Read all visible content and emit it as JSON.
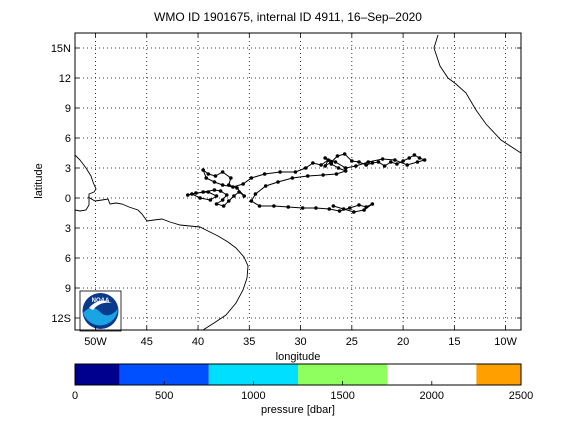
{
  "title": "WMO ID 1901675, internal ID 4911, 16–Sep–2020",
  "map": {
    "xlabel": "longitude",
    "ylabel": "latitude",
    "lon_range": [
      -52,
      -8.5
    ],
    "lat_range": [
      -13.2,
      16.5
    ],
    "x_ticks": [
      {
        "value": -50,
        "label": "50W"
      },
      {
        "value": -45,
        "label": "45"
      },
      {
        "value": -40,
        "label": "40"
      },
      {
        "value": -35,
        "label": "35"
      },
      {
        "value": -30,
        "label": "30"
      },
      {
        "value": -25,
        "label": "25"
      },
      {
        "value": -20,
        "label": "20"
      },
      {
        "value": -15,
        "label": "15"
      },
      {
        "value": -10,
        "label": "10W"
      }
    ],
    "y_ticks": [
      {
        "value": 15,
        "label": "15N"
      },
      {
        "value": 12,
        "label": "12"
      },
      {
        "value": 9,
        "label": "9"
      },
      {
        "value": 6,
        "label": "6"
      },
      {
        "value": 3,
        "label": "3"
      },
      {
        "value": 0,
        "label": "0"
      },
      {
        "value": -3,
        "label": "3"
      },
      {
        "value": -6,
        "label": "6"
      },
      {
        "value": -9,
        "label": "9"
      },
      {
        "value": -12,
        "label": "12S"
      }
    ],
    "grid": "dotted",
    "float_track": [
      [
        -41.0,
        0.3
      ],
      [
        -40.2,
        0.5
      ],
      [
        -39.0,
        0.6
      ],
      [
        -38.2,
        0.2
      ],
      [
        -38.8,
        -0.2
      ],
      [
        -39.8,
        0.0
      ],
      [
        -40.6,
        0.4
      ],
      [
        -39.5,
        0.6
      ],
      [
        -38.4,
        0.8
      ],
      [
        -37.8,
        0.7
      ],
      [
        -37.2,
        0.3
      ],
      [
        -37.6,
        -0.2
      ],
      [
        -38.2,
        -0.6
      ],
      [
        -37.5,
        -0.8
      ],
      [
        -37.0,
        -0.3
      ],
      [
        -36.5,
        0.2
      ],
      [
        -36.0,
        0.6
      ],
      [
        -35.5,
        0.2
      ],
      [
        -36.2,
        1.0
      ],
      [
        -37.0,
        1.3
      ],
      [
        -36.8,
        2.0
      ],
      [
        -37.6,
        2.6
      ],
      [
        -38.3,
        2.2
      ],
      [
        -39.0,
        2.4
      ],
      [
        -39.5,
        2.8
      ],
      [
        -39.2,
        2.0
      ],
      [
        -38.4,
        1.6
      ],
      [
        -37.6,
        1.3
      ],
      [
        -36.6,
        1.1
      ],
      [
        -35.6,
        1.4
      ],
      [
        -34.8,
        2.0
      ],
      [
        -33.5,
        2.4
      ],
      [
        -32.0,
        2.6
      ],
      [
        -30.5,
        2.6
      ],
      [
        -29.5,
        3.0
      ],
      [
        -28.8,
        3.5
      ],
      [
        -28.0,
        3.3
      ],
      [
        -27.3,
        3.8
      ],
      [
        -27.6,
        3.2
      ],
      [
        -27.0,
        3.6
      ],
      [
        -26.4,
        4.2
      ],
      [
        -25.7,
        4.4
      ],
      [
        -25.0,
        3.7
      ],
      [
        -24.3,
        3.6
      ],
      [
        -23.6,
        3.3
      ],
      [
        -23.0,
        3.5
      ],
      [
        -22.4,
        3.6
      ],
      [
        -21.8,
        3.2
      ],
      [
        -21.2,
        3.6
      ],
      [
        -20.6,
        3.4
      ],
      [
        -20.0,
        3.7
      ],
      [
        -19.4,
        4.0
      ],
      [
        -18.9,
        4.3
      ],
      [
        -18.4,
        4.0
      ],
      [
        -17.9,
        3.8
      ],
      [
        -18.6,
        3.6
      ],
      [
        -19.6,
        3.3
      ],
      [
        -20.8,
        3.8
      ],
      [
        -22.0,
        3.9
      ],
      [
        -23.4,
        3.6
      ],
      [
        -24.6,
        3.2
      ],
      [
        -25.6,
        3.0
      ],
      [
        -26.6,
        3.6
      ],
      [
        -27.6,
        4.0
      ],
      [
        -27.0,
        3.4
      ],
      [
        -26.3,
        3.0
      ],
      [
        -25.6,
        2.7
      ],
      [
        -26.5,
        2.4
      ],
      [
        -27.8,
        2.3
      ],
      [
        -29.3,
        2.2
      ],
      [
        -30.8,
        2.0
      ],
      [
        -32.2,
        1.6
      ],
      [
        -33.4,
        1.2
      ],
      [
        -34.4,
        0.4
      ],
      [
        -34.8,
        -0.3
      ],
      [
        -34.0,
        -0.8
      ],
      [
        -32.6,
        -0.8
      ],
      [
        -31.2,
        -0.9
      ],
      [
        -29.8,
        -1.0
      ],
      [
        -28.5,
        -1.0
      ],
      [
        -27.2,
        -1.1
      ],
      [
        -26.2,
        -1.3
      ],
      [
        -25.2,
        -1.0
      ],
      [
        -24.3,
        -0.7
      ],
      [
        -23.6,
        -0.9
      ],
      [
        -23.0,
        -0.6
      ],
      [
        -23.8,
        -1.2
      ],
      [
        -24.8,
        -1.4
      ],
      [
        -25.8,
        -1.1
      ],
      [
        -26.8,
        -0.8
      ]
    ]
  },
  "colorbar": {
    "label": "pressure [dbar]",
    "ticks": [
      "0",
      "500",
      "1000",
      "1500",
      "2000",
      "2500"
    ],
    "segments": [
      {
        "from": 0,
        "to": 250,
        "color": "#00008f"
      },
      {
        "from": 250,
        "to": 750,
        "color": "#0050ff"
      },
      {
        "from": 750,
        "to": 1250,
        "color": "#00dfff"
      },
      {
        "from": 1250,
        "to": 1750,
        "color": "#8fff60"
      },
      {
        "from": 1750,
        "to": 2250,
        "color": "#ffffff"
      },
      {
        "from": 2250,
        "to": 2500,
        "color": "#ffa000"
      }
    ]
  },
  "logo": {
    "text": "NOAA",
    "colors": [
      "#0a3a8c",
      "#1aa4e6",
      "#ffffff"
    ]
  }
}
